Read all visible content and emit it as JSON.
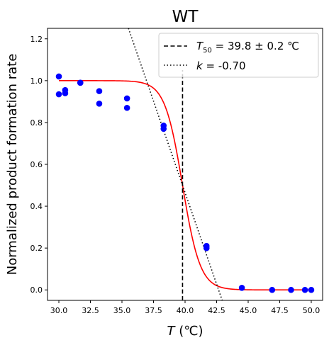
{
  "chart_data": {
    "type": "scatter",
    "title": "WT",
    "xlabel_var": "T",
    "xlabel_unit": " (℃)",
    "ylabel": "Normalized product formation rate",
    "xlim": [
      29.1,
      50.9
    ],
    "ylim": [
      -0.05,
      1.25
    ],
    "xticks": [
      30.0,
      32.5,
      35.0,
      37.5,
      40.0,
      42.5,
      45.0,
      47.5,
      50.0
    ],
    "xtick_labels": [
      "30.0",
      "32.5",
      "35.0",
      "37.5",
      "40.0",
      "42.5",
      "45.0",
      "47.5",
      "50.0"
    ],
    "yticks": [
      0.0,
      0.2,
      0.4,
      0.6,
      0.8,
      1.0,
      1.2
    ],
    "ytick_labels": [
      "0.0",
      "0.2",
      "0.4",
      "0.6",
      "0.8",
      "1.0",
      "1.2"
    ],
    "grid": false,
    "legend_position": "top-right",
    "points": {
      "x": [
        30.0,
        30.0,
        30.5,
        30.5,
        31.7,
        31.7,
        33.2,
        33.2,
        35.4,
        35.4,
        38.3,
        38.3,
        41.7,
        41.7,
        44.5,
        46.9,
        48.4,
        49.5,
        50.0
      ],
      "y": [
        1.02,
        0.935,
        0.955,
        0.94,
        0.99,
        0.99,
        0.95,
        0.89,
        0.915,
        0.87,
        0.785,
        0.77,
        0.21,
        0.2,
        0.01,
        0.0,
        0.0,
        0.0,
        0.0
      ],
      "color": "#0000ff"
    },
    "fit": {
      "color": "#ff0000",
      "t50": 39.8,
      "k": -0.7,
      "top": 1.0,
      "bottom": 0.0
    },
    "legend": [
      {
        "style": "dashed",
        "label_var": "T",
        "label_sub": "50",
        "label_rest": " = 39.8 ± 0.2 ℃"
      },
      {
        "style": "dotted",
        "label_var": "k",
        "label_rest": " = -0.70"
      }
    ],
    "t50_line": {
      "x": 39.8,
      "y_top": 1.05,
      "color": "#000000"
    },
    "slope_line": {
      "x_at_y_half": 39.8,
      "y_value": 0.5,
      "slope": -0.175,
      "color": "#000000"
    }
  }
}
